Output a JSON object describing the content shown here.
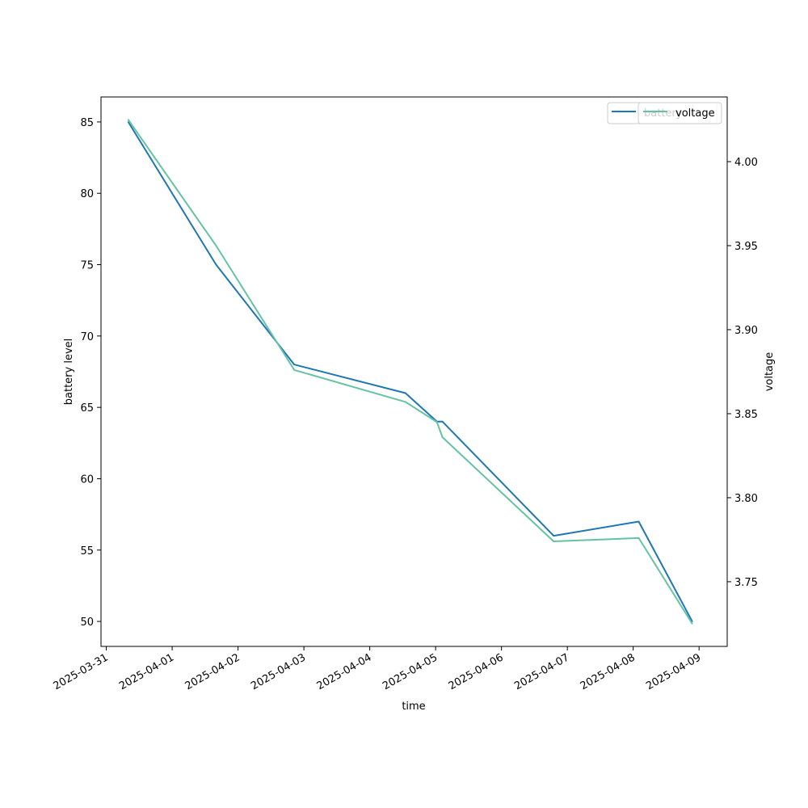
{
  "chart_data": {
    "type": "line",
    "title": "",
    "xlabel": "time",
    "ylabel": "battery level",
    "y2label": "voltage",
    "x_ticks": [
      "2025-03-31",
      "2025-04-01",
      "2025-04-02",
      "2025-04-03",
      "2025-04-04",
      "2025-04-05",
      "2025-04-06",
      "2025-04-07",
      "2025-04-08",
      "2025-04-09"
    ],
    "xlim": [
      "2025-03-30T22:04",
      "2025-04-09T10:15"
    ],
    "y_ticks": [
      50,
      55,
      60,
      65,
      70,
      75,
      80,
      85
    ],
    "ylim": [
      48.25,
      86.75
    ],
    "y2_ticks": [
      3.75,
      3.8,
      3.85,
      3.9,
      3.95,
      4.0
    ],
    "y2lim": [
      3.7115,
      4.0385
    ],
    "grid": false,
    "legend": {
      "placement": "top-right",
      "entries": [
        "battery",
        "voltage"
      ]
    },
    "series": [
      {
        "name": "battery",
        "axis": "left",
        "color": "#1f77b4",
        "points": [
          {
            "x": "2025-03-31T08:00",
            "y": 85
          },
          {
            "x": "2025-04-01T16:00",
            "y": 75
          },
          {
            "x": "2025-04-02T20:30",
            "y": 68
          },
          {
            "x": "2025-04-04T13:00",
            "y": 66
          },
          {
            "x": "2025-04-05T00:30",
            "y": 64
          },
          {
            "x": "2025-04-05T02:30",
            "y": 64
          },
          {
            "x": "2025-04-06T19:00",
            "y": 56
          },
          {
            "x": "2025-04-08T02:00",
            "y": 57
          },
          {
            "x": "2025-04-08T21:30",
            "y": 50
          }
        ]
      },
      {
        "name": "voltage",
        "axis": "right",
        "color": "#66c2a5",
        "points": [
          {
            "x": "2025-03-31T08:00",
            "y": 4.025
          },
          {
            "x": "2025-04-01T16:00",
            "y": 3.95
          },
          {
            "x": "2025-04-02T20:30",
            "y": 3.876
          },
          {
            "x": "2025-04-04T13:00",
            "y": 3.857
          },
          {
            "x": "2025-04-05T00:30",
            "y": 3.845
          },
          {
            "x": "2025-04-05T02:30",
            "y": 3.836
          },
          {
            "x": "2025-04-06T19:00",
            "y": 3.774
          },
          {
            "x": "2025-04-08T02:00",
            "y": 3.776
          },
          {
            "x": "2025-04-08T21:30",
            "y": 3.725
          }
        ]
      }
    ]
  }
}
